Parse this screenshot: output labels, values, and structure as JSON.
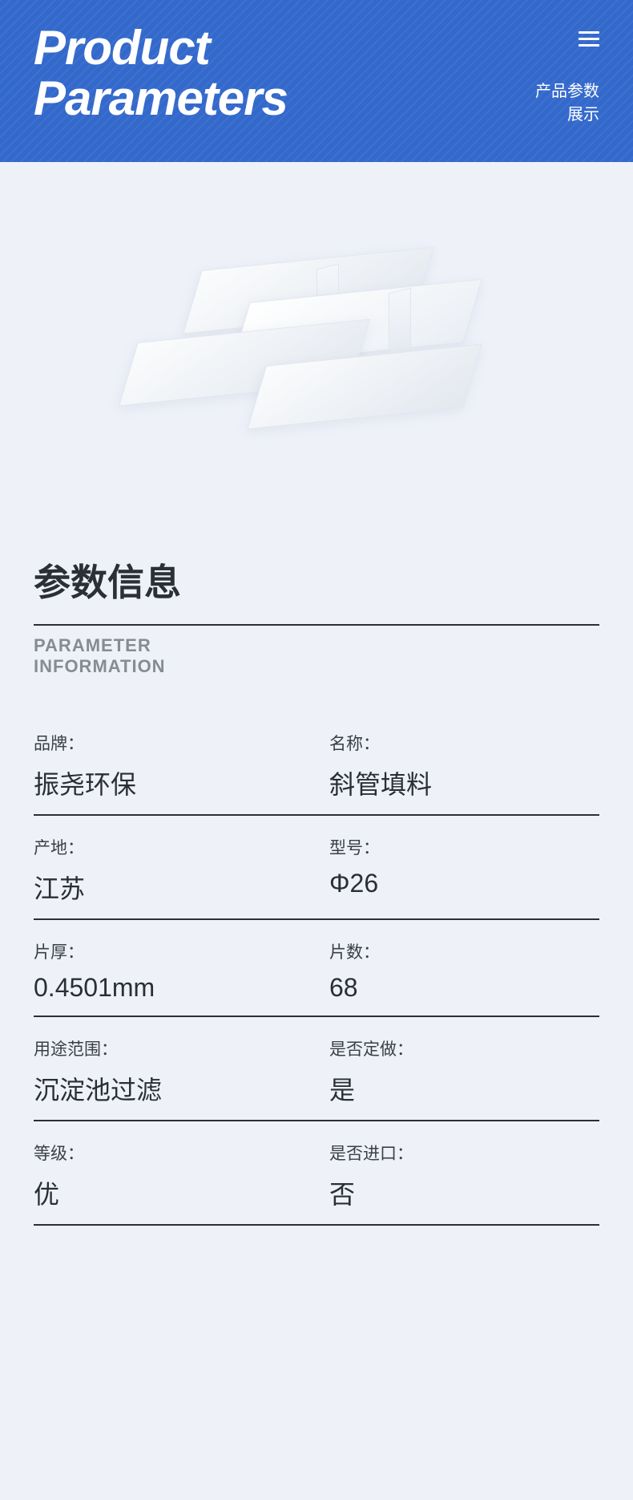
{
  "header": {
    "title_line1": "Product",
    "title_line2": "Parameters",
    "sub_line1": "产品参数",
    "sub_line2": "展示"
  },
  "section": {
    "title_cn": "参数信息",
    "title_en_line1": "PARAMETER",
    "title_en_line2": "INFORMATION"
  },
  "params": [
    {
      "left_label": "品牌：",
      "left_value": "振尧环保",
      "right_label": "名称：",
      "right_value": "斜管填料"
    },
    {
      "left_label": "产地：",
      "left_value": "江苏",
      "right_label": "型号：",
      "right_value": "Φ26"
    },
    {
      "left_label": "片厚：",
      "left_value": "0.4501mm",
      "right_label": "片数：",
      "right_value": "68"
    },
    {
      "left_label": "用途范围：",
      "left_value": "沉淀池过滤",
      "right_label": "是否定做：",
      "right_value": "是"
    },
    {
      "left_label": "等级：",
      "left_value": "优",
      "right_label": "是否进口：",
      "right_value": "否"
    }
  ],
  "colors": {
    "header_bg": "#3469cc",
    "page_bg": "#eef1f8",
    "text_primary": "#2a2e36",
    "text_secondary": "#868b94",
    "divider": "#2b2f37"
  }
}
